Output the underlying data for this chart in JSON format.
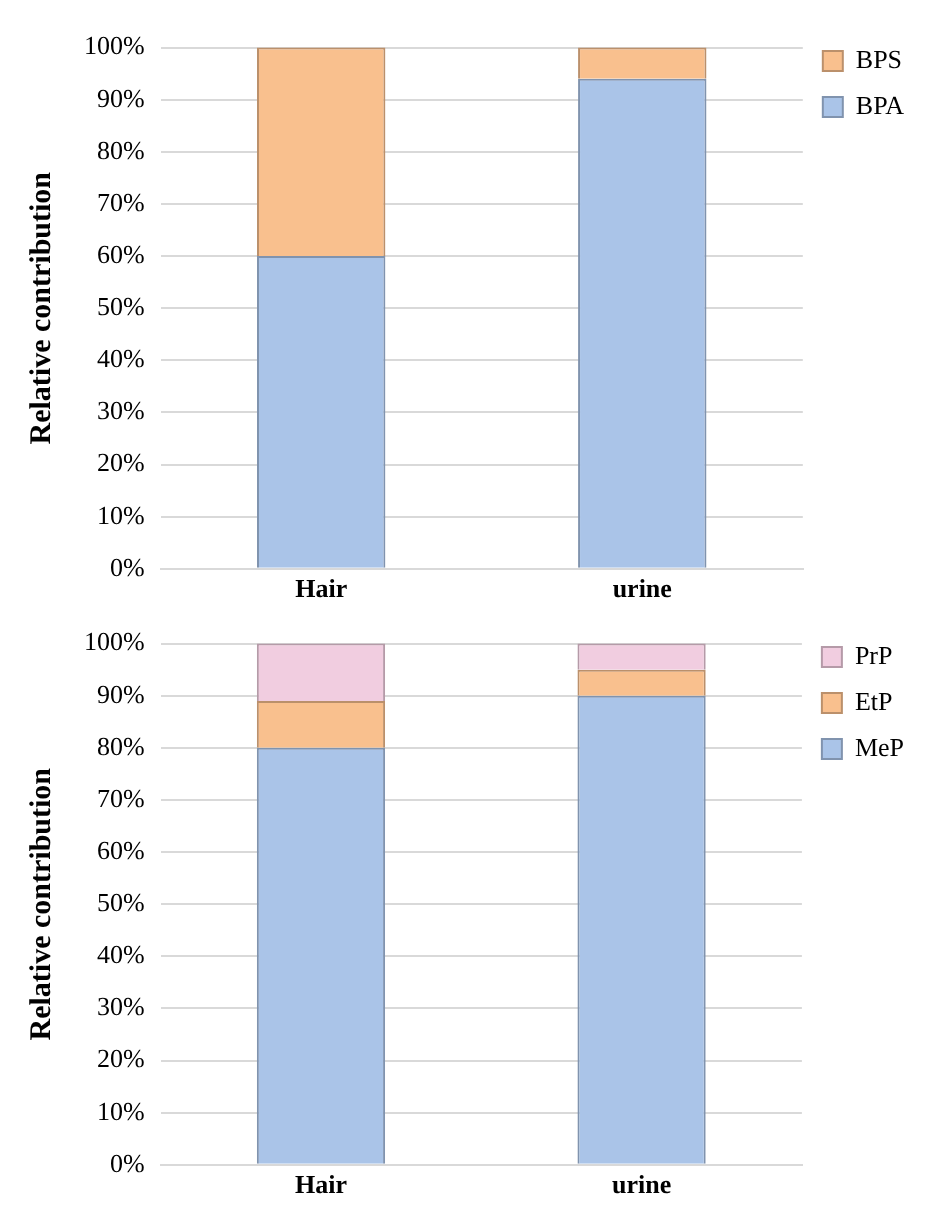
{
  "chart_data": [
    {
      "type": "bar",
      "stacked": true,
      "categories": [
        "Hair",
        "urine"
      ],
      "ylabel": "Relative contribution",
      "ylim": [
        0,
        100
      ],
      "yticks": [
        {
          "value": 0,
          "label": "0%"
        },
        {
          "value": 10,
          "label": "10%"
        },
        {
          "value": 20,
          "label": "20%"
        },
        {
          "value": 30,
          "label": "30%"
        },
        {
          "value": 40,
          "label": "40%"
        },
        {
          "value": 50,
          "label": "50%"
        },
        {
          "value": 60,
          "label": "60%"
        },
        {
          "value": 70,
          "label": "70%"
        },
        {
          "value": 80,
          "label": "80%"
        },
        {
          "value": 90,
          "label": "90%"
        },
        {
          "value": 100,
          "label": "100%"
        }
      ],
      "grid": "y",
      "legend": "top right",
      "series": [
        {
          "name": "BPA",
          "color": "#aac4e8",
          "values": [
            60,
            94
          ]
        },
        {
          "name": "BPS",
          "color": "#f9c08e",
          "values": [
            40,
            6
          ]
        }
      ]
    },
    {
      "type": "bar",
      "stacked": true,
      "categories": [
        "Hair",
        "urine"
      ],
      "ylabel": "Relative contribution",
      "ylim": [
        0,
        100
      ],
      "yticks": [
        {
          "value": 0,
          "label": "0%"
        },
        {
          "value": 10,
          "label": "10%"
        },
        {
          "value": 20,
          "label": "20%"
        },
        {
          "value": 30,
          "label": "30%"
        },
        {
          "value": 40,
          "label": "40%"
        },
        {
          "value": 50,
          "label": "50%"
        },
        {
          "value": 60,
          "label": "60%"
        },
        {
          "value": 70,
          "label": "70%"
        },
        {
          "value": 80,
          "label": "80%"
        },
        {
          "value": 90,
          "label": "90%"
        },
        {
          "value": 100,
          "label": "100%"
        }
      ],
      "grid": "y",
      "legend": "top right",
      "series": [
        {
          "name": "MeP",
          "color": "#aac4e8",
          "values": [
            80,
            90
          ]
        },
        {
          "name": "EtP",
          "color": "#f9c08e",
          "values": [
            9,
            5
          ]
        },
        {
          "name": "PrP",
          "color": "#f1cde0",
          "values": [
            11,
            5
          ]
        }
      ]
    }
  ]
}
